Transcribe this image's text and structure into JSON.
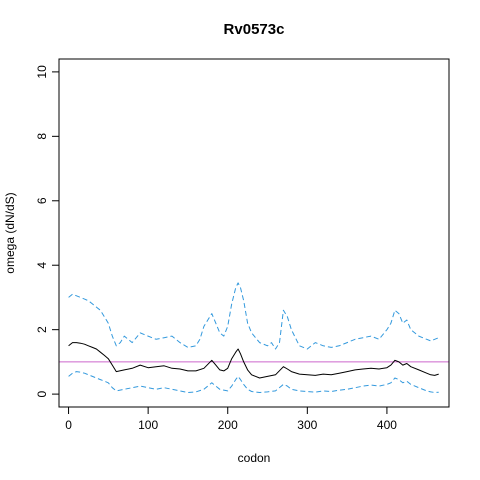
{
  "chart_data": {
    "type": "line",
    "title": "Rv0573c",
    "xlabel": "codon",
    "ylabel": "omega (dN/dS)",
    "xlim": [
      -12,
      478
    ],
    "ylim": [
      -0.4,
      10.4
    ],
    "x_ticks": [
      0,
      100,
      200,
      300,
      400
    ],
    "y_ticks": [
      0,
      2,
      4,
      6,
      8,
      10
    ],
    "grid": false,
    "legend": "none",
    "reference_line": {
      "y": 1,
      "color": "#cc66cc"
    },
    "series": [
      {
        "role": "estimate",
        "style": "solid",
        "color": "#000000",
        "x": [
          0,
          5,
          10,
          15,
          20,
          25,
          30,
          35,
          40,
          45,
          50,
          55,
          60,
          70,
          80,
          90,
          100,
          110,
          120,
          130,
          140,
          150,
          160,
          170,
          180,
          185,
          190,
          195,
          200,
          205,
          210,
          213,
          216,
          220,
          225,
          230,
          240,
          250,
          260,
          270,
          275,
          280,
          290,
          300,
          310,
          320,
          330,
          340,
          350,
          360,
          370,
          380,
          390,
          400,
          405,
          410,
          415,
          420,
          425,
          430,
          440,
          450,
          455,
          460,
          465
        ],
        "y": [
          1.5,
          1.6,
          1.6,
          1.58,
          1.55,
          1.5,
          1.45,
          1.4,
          1.3,
          1.2,
          1.1,
          0.9,
          0.7,
          0.75,
          0.8,
          0.9,
          0.82,
          0.85,
          0.88,
          0.8,
          0.78,
          0.72,
          0.72,
          0.8,
          1.05,
          0.9,
          0.75,
          0.72,
          0.8,
          1.1,
          1.3,
          1.4,
          1.25,
          1.0,
          0.75,
          0.6,
          0.5,
          0.55,
          0.6,
          0.85,
          0.78,
          0.7,
          0.62,
          0.6,
          0.58,
          0.62,
          0.6,
          0.65,
          0.7,
          0.75,
          0.78,
          0.8,
          0.78,
          0.82,
          0.9,
          1.05,
          1.0,
          0.9,
          0.95,
          0.85,
          0.75,
          0.65,
          0.6,
          0.58,
          0.62
        ]
      },
      {
        "role": "upper bound",
        "style": "dashed",
        "color": "#3399dd",
        "x": [
          0,
          5,
          10,
          15,
          20,
          25,
          30,
          35,
          40,
          45,
          50,
          55,
          60,
          65,
          70,
          75,
          80,
          90,
          100,
          110,
          120,
          130,
          140,
          150,
          160,
          165,
          170,
          175,
          180,
          185,
          190,
          195,
          200,
          205,
          210,
          213,
          216,
          220,
          225,
          230,
          240,
          250,
          255,
          260,
          265,
          270,
          275,
          280,
          290,
          300,
          310,
          320,
          330,
          340,
          350,
          360,
          370,
          380,
          390,
          400,
          405,
          410,
          415,
          420,
          425,
          430,
          440,
          450,
          455,
          460,
          465
        ],
        "y": [
          3.0,
          3.1,
          3.05,
          3.0,
          2.95,
          2.9,
          2.8,
          2.7,
          2.6,
          2.4,
          2.2,
          1.8,
          1.5,
          1.6,
          1.8,
          1.7,
          1.6,
          1.9,
          1.8,
          1.7,
          1.75,
          1.8,
          1.6,
          1.45,
          1.5,
          1.7,
          2.1,
          2.3,
          2.5,
          2.2,
          1.9,
          1.8,
          2.1,
          2.8,
          3.3,
          3.45,
          3.3,
          2.9,
          2.2,
          1.9,
          1.6,
          1.5,
          1.6,
          1.4,
          1.6,
          2.6,
          2.4,
          2.0,
          1.5,
          1.4,
          1.6,
          1.5,
          1.45,
          1.5,
          1.6,
          1.7,
          1.75,
          1.8,
          1.7,
          2.0,
          2.2,
          2.6,
          2.5,
          2.2,
          2.3,
          2.0,
          1.8,
          1.7,
          1.65,
          1.7,
          1.75
        ]
      },
      {
        "role": "lower bound",
        "style": "dashed",
        "color": "#3399dd",
        "x": [
          0,
          5,
          10,
          15,
          20,
          25,
          30,
          35,
          40,
          45,
          50,
          55,
          60,
          70,
          80,
          90,
          100,
          110,
          120,
          130,
          140,
          150,
          160,
          170,
          180,
          185,
          190,
          200,
          205,
          210,
          213,
          216,
          220,
          225,
          230,
          240,
          250,
          260,
          270,
          275,
          280,
          290,
          300,
          310,
          320,
          330,
          340,
          350,
          360,
          370,
          380,
          390,
          400,
          405,
          410,
          415,
          420,
          425,
          430,
          440,
          450,
          455,
          460,
          465
        ],
        "y": [
          0.55,
          0.65,
          0.7,
          0.68,
          0.65,
          0.6,
          0.55,
          0.5,
          0.45,
          0.4,
          0.35,
          0.2,
          0.1,
          0.15,
          0.2,
          0.25,
          0.2,
          0.15,
          0.2,
          0.15,
          0.1,
          0.05,
          0.07,
          0.15,
          0.35,
          0.25,
          0.15,
          0.1,
          0.25,
          0.45,
          0.55,
          0.45,
          0.3,
          0.15,
          0.08,
          0.05,
          0.07,
          0.1,
          0.3,
          0.25,
          0.15,
          0.1,
          0.08,
          0.06,
          0.1,
          0.08,
          0.12,
          0.15,
          0.2,
          0.25,
          0.28,
          0.25,
          0.3,
          0.35,
          0.5,
          0.45,
          0.35,
          0.4,
          0.3,
          0.2,
          0.1,
          0.07,
          0.05,
          0.06
        ]
      }
    ]
  }
}
